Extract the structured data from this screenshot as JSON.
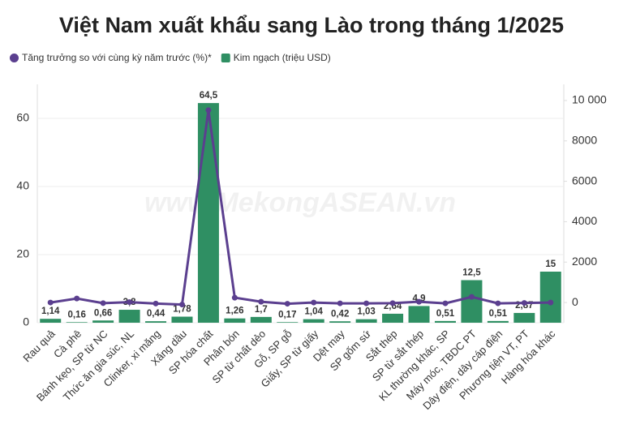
{
  "chart_data": {
    "type": "bar-line",
    "title": "Việt Nam xuất khẩu sang Lào trong tháng 1/2025",
    "watermark": "www.MekongASEAN.vn",
    "categories": [
      "Rau quả",
      "Cà phê",
      "Bánh kẹo, SP từ NC",
      "Thức ăn gia súc, NL",
      "Clinker, xi măng",
      "Xăng dầu",
      "SP hóa chất",
      "Phân bón",
      "SP từ chất dẻo",
      "Gỗ, SP gỗ",
      "Giấy, SP từ giấy",
      "Dệt may",
      "SP gốm sứ",
      "Sắt thép",
      "SP từ sắt thép",
      "KL thường khác, SP",
      "Máy móc, TBDC PT",
      "Dây điện, dây cáp điện",
      "Phương tiện VT, PT",
      "Hàng hóa khác"
    ],
    "series": [
      {
        "name": "Tăng trưởng so với cùng kỳ năm trước (%)*",
        "color": "#5b3f8f",
        "axis": "y2",
        "kind": "line",
        "values": [
          0,
          200,
          -30,
          20,
          -50,
          -100,
          9520,
          240,
          40,
          -60,
          0,
          -40,
          -40,
          -30,
          40,
          -40,
          280,
          -40,
          -20,
          0
        ]
      },
      {
        "name": "Kim ngạch (triệu USD)",
        "color": "#2f8f63",
        "kind": "bar",
        "values": [
          1.14,
          0.16,
          0.66,
          3.8,
          0.44,
          1.78,
          64.5,
          1.26,
          1.7,
          0.17,
          1.04,
          0.42,
          1.03,
          2.64,
          4.9,
          0.51,
          12.5,
          0.51,
          2.87,
          15
        ],
        "value_labels": [
          "1,14",
          "0,16",
          "0,66",
          "3,8",
          "0,44",
          "1,78",
          "64,5",
          "1,26",
          "1,7",
          "0,17",
          "1,04",
          "0,42",
          "1,03",
          "2,64",
          "4,9",
          "0,51",
          "12,5",
          "0,51",
          "2,87",
          "15"
        ]
      }
    ],
    "ylim": [
      0,
      70
    ],
    "yticks": [
      0,
      20,
      40,
      60
    ],
    "y2lim": [
      -1000,
      10800
    ],
    "y2ticks": [
      0,
      2000,
      4000,
      6000,
      8000,
      {
        "value": 10000,
        "label": "10 000"
      }
    ],
    "grid": true
  }
}
